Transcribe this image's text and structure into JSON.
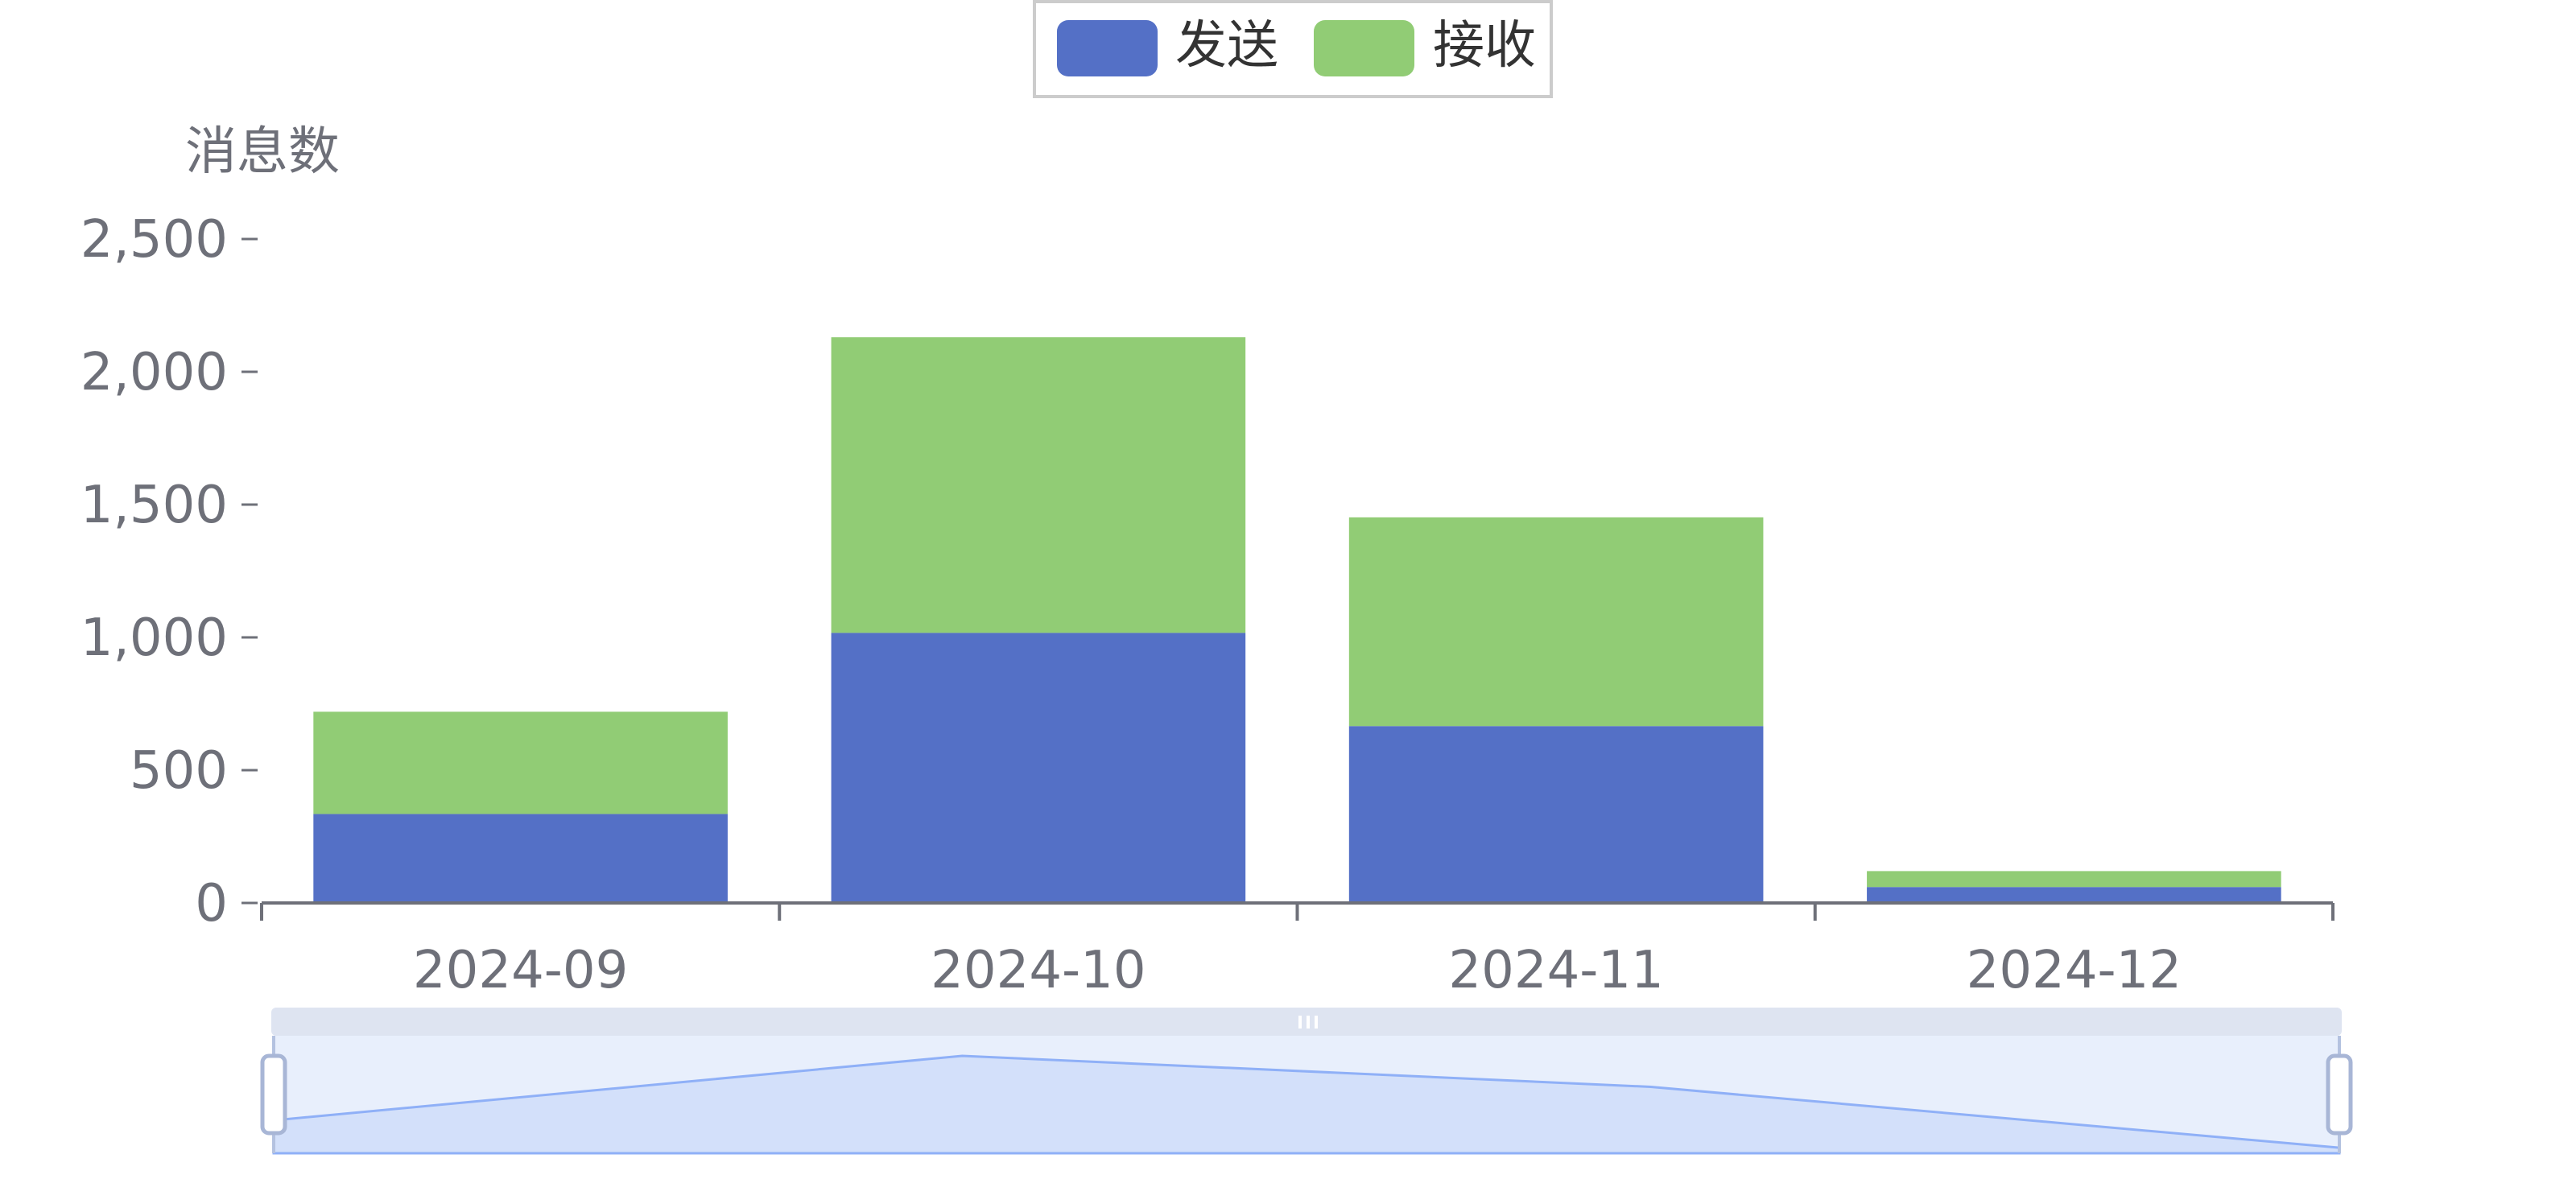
{
  "chart_data": {
    "type": "bar",
    "stacked": true,
    "categories": [
      "2024-09",
      "2024-10",
      "2024-11",
      "2024-12"
    ],
    "series": [
      {
        "name": "发送",
        "values": [
          335,
          1017,
          666,
          60
        ],
        "color": "#5470c6"
      },
      {
        "name": "接收",
        "values": [
          385,
          1113,
          786,
          60
        ],
        "color": "#91cc75"
      }
    ],
    "ylabel": "消息数",
    "ylim": [
      0,
      2500
    ],
    "yticks": [
      0,
      500,
      1000,
      1500,
      2000,
      2500
    ],
    "ytick_labels": [
      "0",
      "500",
      "1,000",
      "1,500",
      "2,000",
      "2,500"
    ],
    "legend_position": "top-center",
    "grid": false,
    "data_zoom": {
      "start_percent": 0,
      "end_percent": 100
    }
  }
}
